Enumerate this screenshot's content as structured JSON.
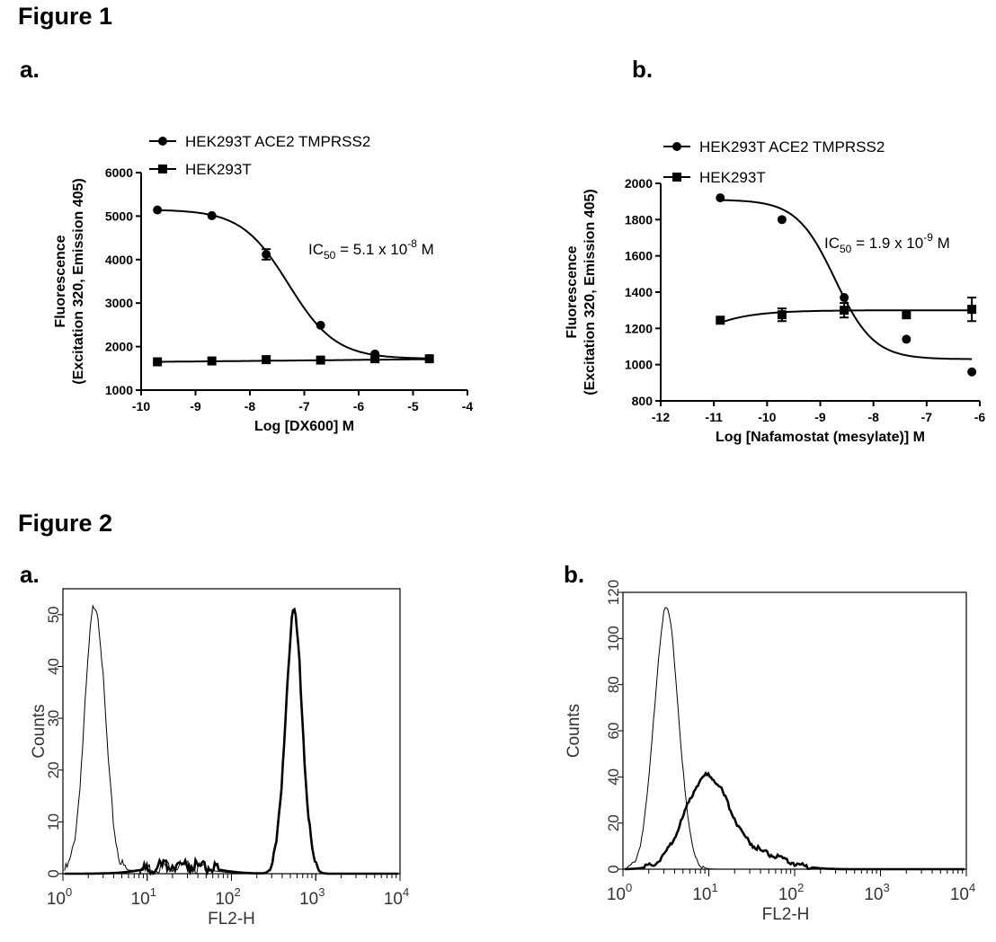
{
  "figure1": {
    "title": "Figure 1",
    "panel_a_label": "a.",
    "panel_b_label": "b."
  },
  "figure2": {
    "title": "Figure 2",
    "panel_a_label": "a.",
    "panel_b_label": "b."
  },
  "chart_data": [
    {
      "id": "fig1a",
      "type": "line",
      "xlabel": "Log [DX600] M",
      "ylabel_lines": [
        "Fluorescence",
        "(Excitation 320, Emission 405)"
      ],
      "xlim": [
        -10,
        -4
      ],
      "ylim": [
        1000,
        6000
      ],
      "xticks": [
        -10,
        -9,
        -8,
        -7,
        -6,
        -5,
        -4
      ],
      "yticks": [
        1000,
        2000,
        3000,
        4000,
        5000,
        6000
      ],
      "annotation": {
        "main": "IC",
        "sub": "50",
        "mid": " = 5.1 x 10",
        "sup": "-8",
        "tail": " M"
      },
      "fit": {
        "bottom": 1720,
        "top": 5150,
        "log_ic50": -7.29,
        "hill": 1.0,
        "flat_slope": 12
      },
      "series": [
        {
          "name": "HEK293T ACE2 TMPRSS2",
          "marker": "circle",
          "x": [
            -9.7,
            -8.7,
            -7.7,
            -6.7,
            -5.7,
            -4.7
          ],
          "y": [
            5140,
            5010,
            4120,
            2490,
            1830,
            1720
          ],
          "err": [
            0,
            0,
            120,
            0,
            0,
            0
          ]
        },
        {
          "name": "HEK293T",
          "marker": "square",
          "x": [
            -9.7,
            -8.7,
            -7.7,
            -6.7,
            -5.7,
            -4.7
          ],
          "y": [
            1650,
            1670,
            1700,
            1690,
            1720,
            1720
          ],
          "err": [
            0,
            0,
            0,
            0,
            0,
            0
          ]
        }
      ]
    },
    {
      "id": "fig1b",
      "type": "line",
      "xlabel": "Log [Nafamostat (mesylate)] M",
      "ylabel_lines": [
        "Fluorescence",
        "(Excitation 320, Emission 405)"
      ],
      "xlim": [
        -12,
        -6
      ],
      "ylim": [
        800,
        2000
      ],
      "xticks": [
        -12,
        -11,
        -10,
        -9,
        -8,
        -7,
        -6
      ],
      "yticks": [
        800,
        1000,
        1200,
        1400,
        1600,
        1800,
        2000
      ],
      "annotation": {
        "main": "IC",
        "sub": "50",
        "mid": " = 1.9 x 10",
        "sup": "-9",
        "tail": " M"
      },
      "fit": {
        "bottom": 1030,
        "top": 1910,
        "log_ic50": -8.72,
        "hill": 1.2,
        "flat_bottom": 1230,
        "flat_top": 1300
      },
      "series": [
        {
          "name": "HEK293T ACE2 TMPRSS2",
          "marker": "circle",
          "x": [
            -10.88,
            -9.72,
            -8.55,
            -7.38,
            -6.15
          ],
          "y": [
            1920,
            1800,
            1370,
            1140,
            960
          ],
          "err": [
            0,
            0,
            0,
            0,
            0
          ]
        },
        {
          "name": "HEK293T",
          "marker": "square",
          "x": [
            -10.88,
            -9.72,
            -8.55,
            -7.38,
            -6.15
          ],
          "y": [
            1245,
            1275,
            1300,
            1275,
            1305
          ],
          "err": [
            0,
            35,
            40,
            0,
            65
          ]
        }
      ]
    },
    {
      "id": "fig2a",
      "type": "area",
      "xlabel": "FL2-H",
      "ylabel": "Counts",
      "xscale": "log",
      "xlim": [
        1,
        10000
      ],
      "ylim": [
        0,
        55
      ],
      "xtick_base": "10",
      "xtick_exponents": [
        "0",
        "1",
        "2",
        "3",
        "4"
      ],
      "yticks": [
        0,
        10,
        20,
        30,
        40,
        50
      ],
      "series": [
        {
          "name": "",
          "style": "thin",
          "peaks": [
            {
              "center": 2.4,
              "sigma": 0.12,
              "height": 52
            },
            {
              "center": 20,
              "sigma": 0.35,
              "height": 1.5
            }
          ]
        },
        {
          "name": "",
          "style": "thick",
          "peaks": [
            {
              "center": 550,
              "sigma": 0.1,
              "height": 50
            },
            {
              "center": 25,
              "sigma": 0.35,
              "height": 1.8
            }
          ]
        }
      ]
    },
    {
      "id": "fig2b",
      "type": "area",
      "xlabel": "FL2-H",
      "ylabel": "Counts",
      "xscale": "log",
      "xlim": [
        1,
        10000
      ],
      "ylim": [
        0,
        120
      ],
      "xtick_base": "10",
      "xtick_exponents": [
        "0",
        "1",
        "2",
        "3",
        "4"
      ],
      "yticks": [
        0,
        20,
        40,
        60,
        80,
        100,
        120
      ],
      "series": [
        {
          "name": "",
          "style": "thin",
          "peaks": [
            {
              "center": 3.2,
              "sigma": 0.14,
              "height": 113
            }
          ]
        },
        {
          "name": "",
          "style": "thick",
          "peaks": [
            {
              "center": 9.5,
              "sigma": 0.26,
              "height": 40
            },
            {
              "center": 40,
              "sigma": 0.3,
              "height": 6
            }
          ]
        }
      ]
    }
  ]
}
